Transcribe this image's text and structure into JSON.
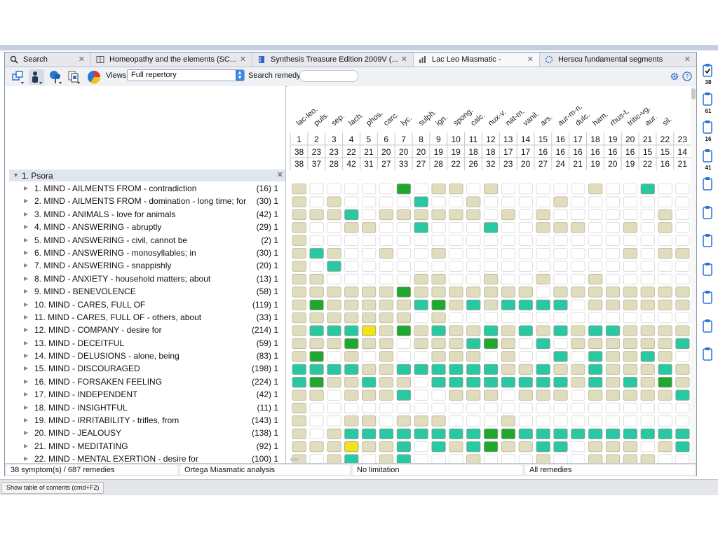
{
  "tabs": [
    {
      "label": "Search",
      "icon": "search-icon",
      "active": false
    },
    {
      "label": "Homeopathy and the elements (SC...",
      "icon": "book-icon",
      "active": false
    },
    {
      "label": "Synthesis Treasure Edition 2009V (...",
      "icon": "book-blue-icon",
      "active": false
    },
    {
      "label": "Lac Leo Miasmatic -",
      "icon": "chart-icon",
      "active": true
    },
    {
      "label": "Herscu fundamental segments",
      "icon": "segments-icon",
      "active": false
    }
  ],
  "toolbar": {
    "views_label": "Views:",
    "views_value": "Full repertory",
    "search_label": "Search remedy:",
    "search_value": ""
  },
  "grid": {
    "remedies": [
      "lac-leo.",
      "puls.",
      "sep.",
      "lach.",
      "phos.",
      "carc.",
      "lyc.",
      "sulph.",
      "ign.",
      "spong.",
      "calc.",
      "nux-v.",
      "nat-m.",
      "vanil.",
      "ars.",
      "aur-m-n.",
      "dulc.",
      "ham.",
      "rhus-t.",
      "tritic-vg.",
      "aur.",
      "sil.",
      ""
    ],
    "numbers": [
      "1",
      "2",
      "3",
      "4",
      "5",
      "6",
      "7",
      "8",
      "9",
      "10",
      "11",
      "12",
      "13",
      "14",
      "15",
      "16",
      "17",
      "18",
      "19",
      "20",
      "21",
      "22",
      "23"
    ],
    "scores_top": [
      "38",
      "23",
      "23",
      "22",
      "21",
      "20",
      "20",
      "20",
      "19",
      "19",
      "18",
      "18",
      "17",
      "17",
      "16",
      "16",
      "16",
      "16",
      "16",
      "16",
      "15",
      "15",
      "14"
    ],
    "scores_bottom": [
      "38",
      "37",
      "28",
      "42",
      "31",
      "27",
      "33",
      "27",
      "28",
      "22",
      "26",
      "32",
      "23",
      "20",
      "27",
      "24",
      "21",
      "19",
      "20",
      "19",
      "22",
      "16",
      "21"
    ],
    "grade_colors": {
      "0": "#ffffff",
      "1": "#e0dcbe",
      "2": "#28c8a2",
      "3": "#20a82e",
      "4": "#f2e21c"
    },
    "cells": [
      "10000030110100000100200",
      "10100002001000010000000",
      "11120111111010100000010",
      "10011002000200111001010",
      "10000000000000000000000",
      "12100100100000000001011",
      "10200000000000000000000",
      "11000001100100100100000",
      "11111131111111011111111",
      "13111112312122220111111",
      "11111110100000000000000",
      "12224131211212121221111",
      "11131101112310201111112",
      "13010100111010020211210",
      "22221122222211211211121",
      "23112110222222221212131",
      "11011120011101110111112",
      "10000000000000000000000",
      "10011011100010000000000",
      "10122222222332222222222",
      "11141120212311220111012",
      "10120120001000100111100"
    ]
  },
  "section": {
    "label": "1. Psora",
    "close": "✕"
  },
  "symptoms": [
    {
      "label": "1. MIND - AILMENTS FROM - contradiction",
      "count": "(16) 1"
    },
    {
      "label": "2. MIND - AILMENTS FROM - domination - long time; for a",
      "count": "(30) 1"
    },
    {
      "label": "3. MIND - ANIMALS - love for animals",
      "count": "(42) 1"
    },
    {
      "label": "4. MIND - ANSWERING - abruptly",
      "count": "(29) 1"
    },
    {
      "label": "5. MIND - ANSWERING - civil, cannot be",
      "count": "(2) 1"
    },
    {
      "label": "6. MIND - ANSWERING - monosyllables; in",
      "count": "(30) 1"
    },
    {
      "label": "7. MIND - ANSWERING - snappishly",
      "count": "(20) 1"
    },
    {
      "label": "8. MIND - ANXIETY - household matters; about",
      "count": "(13) 1"
    },
    {
      "label": "9. MIND - BENEVOLENCE",
      "count": "(58) 1"
    },
    {
      "label": "10. MIND - CARES, FULL OF",
      "count": "(119) 1"
    },
    {
      "label": "11. MIND - CARES, FULL OF - others, about",
      "count": "(33) 1"
    },
    {
      "label": "12. MIND - COMPANY - desire for",
      "count": "(214) 1"
    },
    {
      "label": "13. MIND - DECEITFUL",
      "count": "(59) 1"
    },
    {
      "label": "14. MIND - DELUSIONS - alone, being",
      "count": "(83) 1"
    },
    {
      "label": "15. MIND - DISCOURAGED",
      "count": "(198) 1"
    },
    {
      "label": "16. MIND - FORSAKEN FEELING",
      "count": "(224) 1"
    },
    {
      "label": "17. MIND - INDEPENDENT",
      "count": "(42) 1"
    },
    {
      "label": "18. MIND - INSIGHTFUL",
      "count": "(11) 1"
    },
    {
      "label": "19. MIND - IRRITABILITY - trifles, from",
      "count": "(143) 1"
    },
    {
      "label": "20. MIND - JEALOUSY",
      "count": "(138) 1"
    },
    {
      "label": "21. MIND - MEDITATING",
      "count": "(92) 1"
    },
    {
      "label": "22. MIND - MENTAL EXERTION - desire for",
      "count": "(100) 1"
    }
  ],
  "status": {
    "symptoms": "38 symptom(s) / 687 remedies",
    "analysis": "Ortega Miasmatic analysis",
    "limitation": "No limitation",
    "remedies": "All remedies"
  },
  "sidebar_right": [
    "38",
    "61",
    "16",
    "41",
    "",
    "",
    "",
    "",
    "",
    "",
    ""
  ],
  "bottom": {
    "toc_button": "Show table of contents (cmd+F2)"
  }
}
